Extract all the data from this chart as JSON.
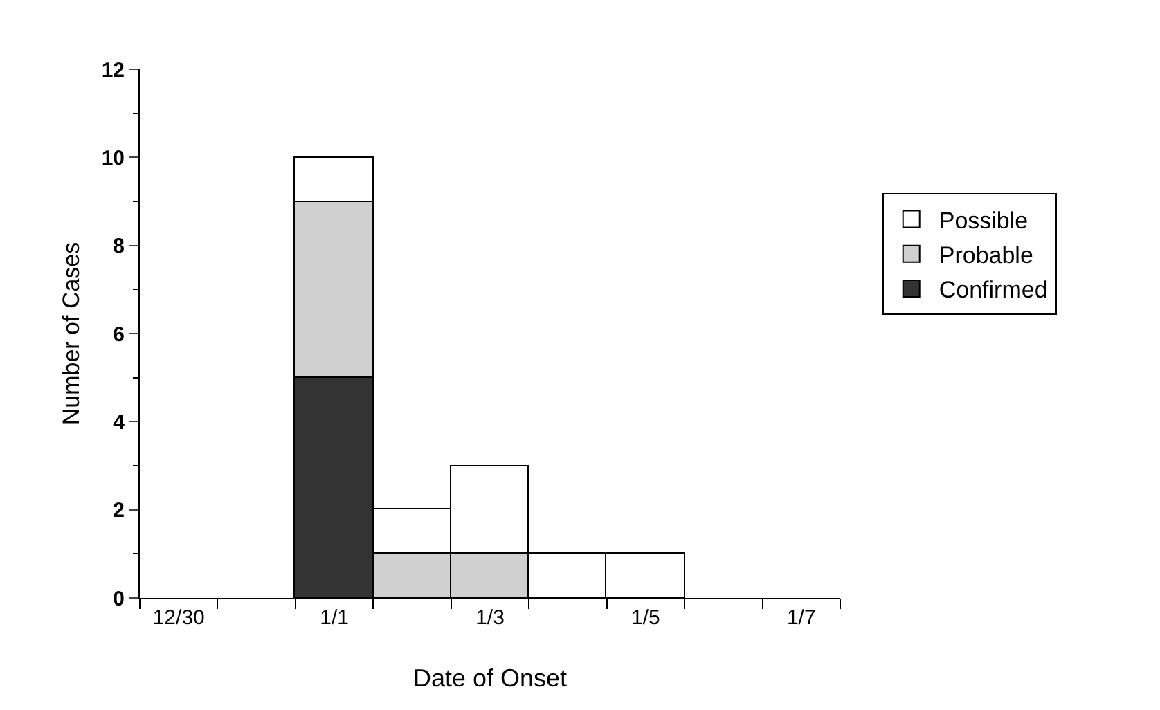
{
  "chart_data": {
    "type": "bar",
    "stacked": true,
    "xlabel": "Date of Onset",
    "ylabel": "Number of Cases",
    "categories": [
      "12/30",
      null,
      "1/1",
      null,
      "1/3",
      null,
      "1/5",
      null,
      "1/7"
    ],
    "series": [
      {
        "name": "Confirmed",
        "color": "#333333",
        "values": [
          null,
          null,
          5,
          null,
          null,
          null,
          null,
          null,
          null
        ]
      },
      {
        "name": "Probable",
        "color": "#d0d0d0",
        "values": [
          null,
          null,
          4,
          1,
          1,
          null,
          null,
          null,
          null
        ]
      },
      {
        "name": "Possible",
        "color": "#ffffff",
        "values": [
          null,
          null,
          1,
          1,
          2,
          1,
          1,
          null,
          null
        ]
      }
    ],
    "ylim": [
      0,
      12
    ],
    "yticks": [
      0,
      2,
      4,
      6,
      8,
      10,
      12
    ],
    "grid": false,
    "legend": "right"
  }
}
